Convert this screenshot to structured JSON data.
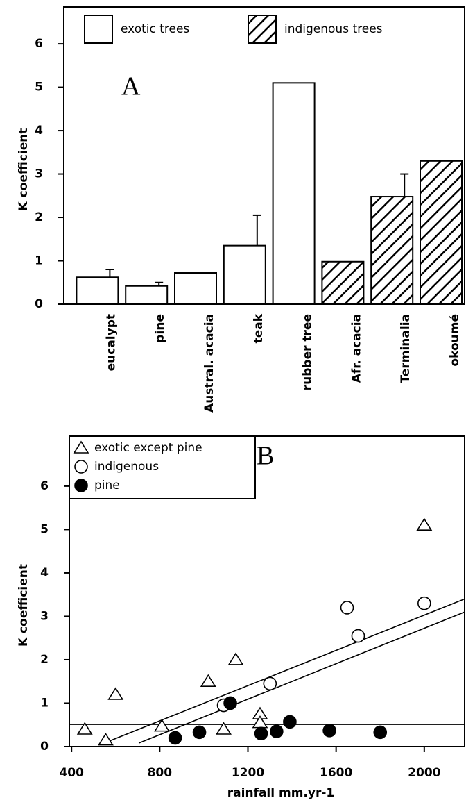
{
  "chart_data": [
    {
      "type": "bar",
      "annotation": "A",
      "ylabel": "K coefficient",
      "categories": [
        "eucalypt",
        "pine",
        "Austral. acacia",
        "teak",
        "rubber tree",
        "Afr. acacia",
        "Terminalia",
        "okoumé"
      ],
      "series": [
        {
          "name": "exotic trees",
          "color": "#ffffff",
          "pattern": "none",
          "values": [
            0.62,
            0.42,
            0.72,
            1.35,
            5.1,
            null,
            null,
            null
          ],
          "errors": [
            0.18,
            0.08,
            null,
            0.7,
            null,
            null,
            null,
            null
          ]
        },
        {
          "name": "indigenous trees",
          "color": "#ffffff",
          "pattern": "hatch",
          "values": [
            null,
            null,
            null,
            null,
            null,
            0.98,
            2.48,
            3.3
          ],
          "errors": [
            null,
            null,
            null,
            null,
            null,
            null,
            0.52,
            null
          ]
        }
      ],
      "ylim": [
        0,
        6.85
      ],
      "yticks": [
        0,
        1,
        2,
        3,
        4,
        5,
        6
      ]
    },
    {
      "type": "scatter",
      "annotation": "B",
      "xlabel": "rainfall mm.yr-1",
      "ylabel": "K coefficient",
      "series": [
        {
          "name": "exotic except pine",
          "marker": "triangle",
          "color": "#ffffff",
          "x": [
            460,
            555,
            600,
            810,
            1020,
            1090,
            1145,
            1255,
            1255,
            2000
          ],
          "values": [
            0.4,
            0.15,
            1.2,
            0.47,
            1.5,
            0.4,
            2.0,
            0.75,
            0.55,
            5.1
          ]
        },
        {
          "name": "indigenous",
          "marker": "circle",
          "color": "#ffffff",
          "x": [
            1090,
            1300,
            1650,
            1700,
            2000
          ],
          "values": [
            0.95,
            1.45,
            3.2,
            2.55,
            3.3
          ]
        },
        {
          "name": "pine",
          "marker": "circle",
          "color": "#000000",
          "x": [
            870,
            980,
            1120,
            1260,
            1330,
            1390,
            1570,
            1800
          ],
          "values": [
            0.2,
            0.33,
            1.0,
            0.3,
            0.35,
            0.57,
            0.37,
            0.33
          ]
        }
      ],
      "lines": [
        {
          "x": [
            548,
            2183
          ],
          "values": [
            0.08,
            3.4
          ]
        },
        {
          "x": [
            705,
            2183
          ],
          "values": [
            0.08,
            3.1
          ]
        },
        {
          "x": [
            390,
            2183
          ],
          "values": [
            0.51,
            0.51
          ]
        }
      ],
      "xlim": [
        390,
        2183
      ],
      "xticks": [
        400,
        800,
        1200,
        1600,
        2000
      ],
      "ylim": [
        0,
        7.15
      ],
      "yticks": [
        0,
        1,
        2,
        3,
        4,
        5,
        6
      ]
    }
  ]
}
